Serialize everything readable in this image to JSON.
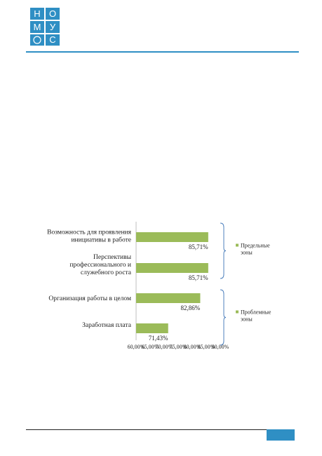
{
  "logo": {
    "letters": [
      "Н",
      "О",
      "М",
      "У",
      "С"
    ],
    "color": "#2f8fc4"
  },
  "colors": {
    "bar": "#9bbb59",
    "bracket": "#4f81bd",
    "accent": "#2f8fc4"
  },
  "chart_data": {
    "type": "bar",
    "orientation": "horizontal",
    "categories": [
      [
        "Возможность для проявления",
        "инициативы в работе"
      ],
      [
        "Перспективы",
        "профессионального и",
        "служебного роста"
      ],
      [
        "Организация работы в целом"
      ],
      [
        "Заработная плата"
      ]
    ],
    "values": [
      85.71,
      85.71,
      82.86,
      71.43
    ],
    "value_labels": [
      "85,71%",
      "85,71%",
      "82,86%",
      "71,43%"
    ],
    "xlim": [
      60,
      90
    ],
    "xticks": [
      60,
      65,
      70,
      75,
      80,
      85,
      90
    ],
    "xtick_labels": [
      "60,00%",
      "65,00%",
      "70,00%",
      "75,00%",
      "80,00%",
      "85,00%",
      "90,00%"
    ],
    "groups": [
      {
        "label": [
          "Предельные",
          "зоны"
        ],
        "categories": [
          0,
          1
        ]
      },
      {
        "label": [
          "Проблемные",
          "зоны"
        ],
        "categories": [
          2,
          3
        ]
      }
    ],
    "grid": false
  }
}
